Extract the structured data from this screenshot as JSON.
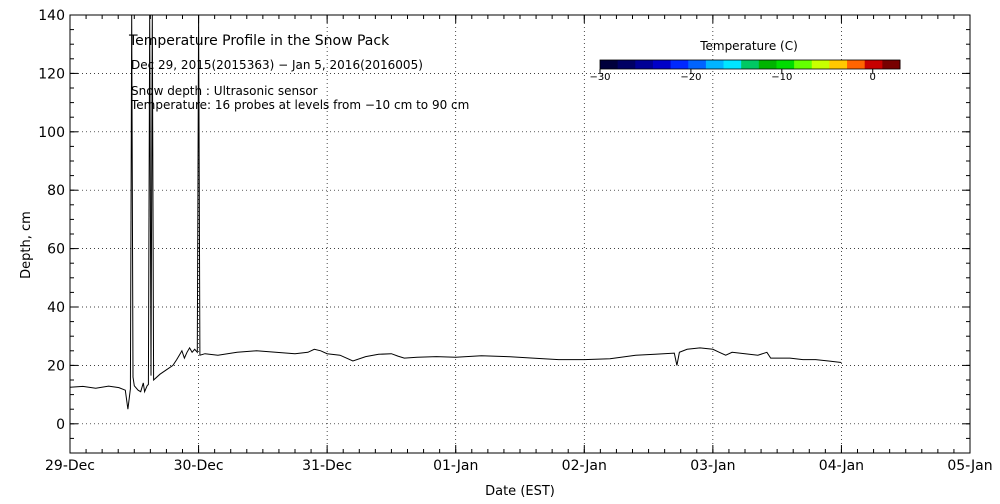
{
  "chart_data": {
    "type": "line",
    "title": "Temperature Profile in the Snow Pack",
    "subtitle": "Dec 29, 2015(2015363) − Jan  5, 2016(2016005)",
    "annotations": [
      "Snow depth : Ultrasonic sensor",
      "Temperature: 16 probes at levels from −10 cm to 90 cm"
    ],
    "xlabel": "Date (EST)",
    "ylabel": "Depth, cm",
    "ylim": [
      -10,
      140
    ],
    "yticks": [
      0,
      20,
      40,
      60,
      80,
      100,
      120,
      140
    ],
    "xlim": [
      "2015-12-29",
      "2016-01-05"
    ],
    "xticks": [
      "29-Dec",
      "30-Dec",
      "31-Dec",
      "01-Jan",
      "02-Jan",
      "03-Jan",
      "04-Jan",
      "05-Jan"
    ],
    "grid": true,
    "colorbar": {
      "title": "Temperature (C)",
      "ticks": [
        -30,
        -20,
        -10,
        0
      ],
      "range": [
        -30,
        3
      ],
      "colors": [
        "#00003c",
        "#000064",
        "#000096",
        "#0000c8",
        "#0028ff",
        "#0064ff",
        "#00b4ff",
        "#00e6ff",
        "#00c864",
        "#00b400",
        "#00dc00",
        "#64ff00",
        "#c8ff00",
        "#ffc800",
        "#ff6400",
        "#c80000",
        "#780000"
      ]
    },
    "series": [
      {
        "values": [
          [
            0.0,
            12.5
          ],
          [
            0.1,
            12.8
          ],
          [
            0.2,
            12.2
          ],
          [
            0.3,
            12.9
          ],
          [
            0.38,
            12.4
          ],
          [
            0.43,
            11.5
          ],
          [
            0.45,
            5.0
          ],
          [
            0.47,
            12.0
          ],
          [
            0.48,
            140
          ],
          [
            0.49,
            16.0
          ],
          [
            0.5,
            13.0
          ],
          [
            0.53,
            11.5
          ],
          [
            0.55,
            11.0
          ],
          [
            0.57,
            14.0
          ],
          [
            0.58,
            11.0
          ],
          [
            0.6,
            13.0
          ],
          [
            0.61,
            13.5
          ],
          [
            0.62,
            140
          ],
          [
            0.63,
            16.5
          ],
          [
            0.64,
            140
          ],
          [
            0.65,
            15.0
          ],
          [
            0.7,
            17.0
          ],
          [
            0.75,
            18.5
          ],
          [
            0.8,
            20.0
          ],
          [
            0.83,
            22.0
          ],
          [
            0.85,
            23.5
          ],
          [
            0.87,
            25.0
          ],
          [
            0.89,
            22.5
          ],
          [
            0.91,
            24.5
          ],
          [
            0.93,
            26.0
          ],
          [
            0.95,
            24.5
          ],
          [
            0.97,
            25.5
          ],
          [
            0.99,
            24.5
          ],
          [
            1.0,
            140
          ],
          [
            1.01,
            23.5
          ],
          [
            1.05,
            24.0
          ],
          [
            1.15,
            23.5
          ],
          [
            1.3,
            24.5
          ],
          [
            1.45,
            25.0
          ],
          [
            1.6,
            24.5
          ],
          [
            1.75,
            24.0
          ],
          [
            1.85,
            24.5
          ],
          [
            1.9,
            25.5
          ],
          [
            1.95,
            25.0
          ],
          [
            2.0,
            24.0
          ],
          [
            2.1,
            23.5
          ],
          [
            2.15,
            22.5
          ],
          [
            2.2,
            21.5
          ],
          [
            2.3,
            23.0
          ],
          [
            2.4,
            23.8
          ],
          [
            2.5,
            24.0
          ],
          [
            2.55,
            23.2
          ],
          [
            2.6,
            22.5
          ],
          [
            2.7,
            22.8
          ],
          [
            2.85,
            23.0
          ],
          [
            3.0,
            22.8
          ],
          [
            3.2,
            23.3
          ],
          [
            3.4,
            23.0
          ],
          [
            3.6,
            22.5
          ],
          [
            3.8,
            22.0
          ],
          [
            4.0,
            22.0
          ],
          [
            4.2,
            22.3
          ],
          [
            4.4,
            23.5
          ],
          [
            4.55,
            23.8
          ],
          [
            4.7,
            24.2
          ],
          [
            4.72,
            20.0
          ],
          [
            4.74,
            24.5
          ],
          [
            4.8,
            25.5
          ],
          [
            4.9,
            26.0
          ],
          [
            5.0,
            25.5
          ],
          [
            5.05,
            24.5
          ],
          [
            5.1,
            23.5
          ],
          [
            5.15,
            24.5
          ],
          [
            5.25,
            24.0
          ],
          [
            5.35,
            23.5
          ],
          [
            5.42,
            24.5
          ],
          [
            5.45,
            22.5
          ],
          [
            5.5,
            22.5
          ],
          [
            5.6,
            22.5
          ],
          [
            5.7,
            22.0
          ],
          [
            5.8,
            22.0
          ],
          [
            5.9,
            21.5
          ],
          [
            6.0,
            21.0
          ]
        ]
      }
    ]
  }
}
